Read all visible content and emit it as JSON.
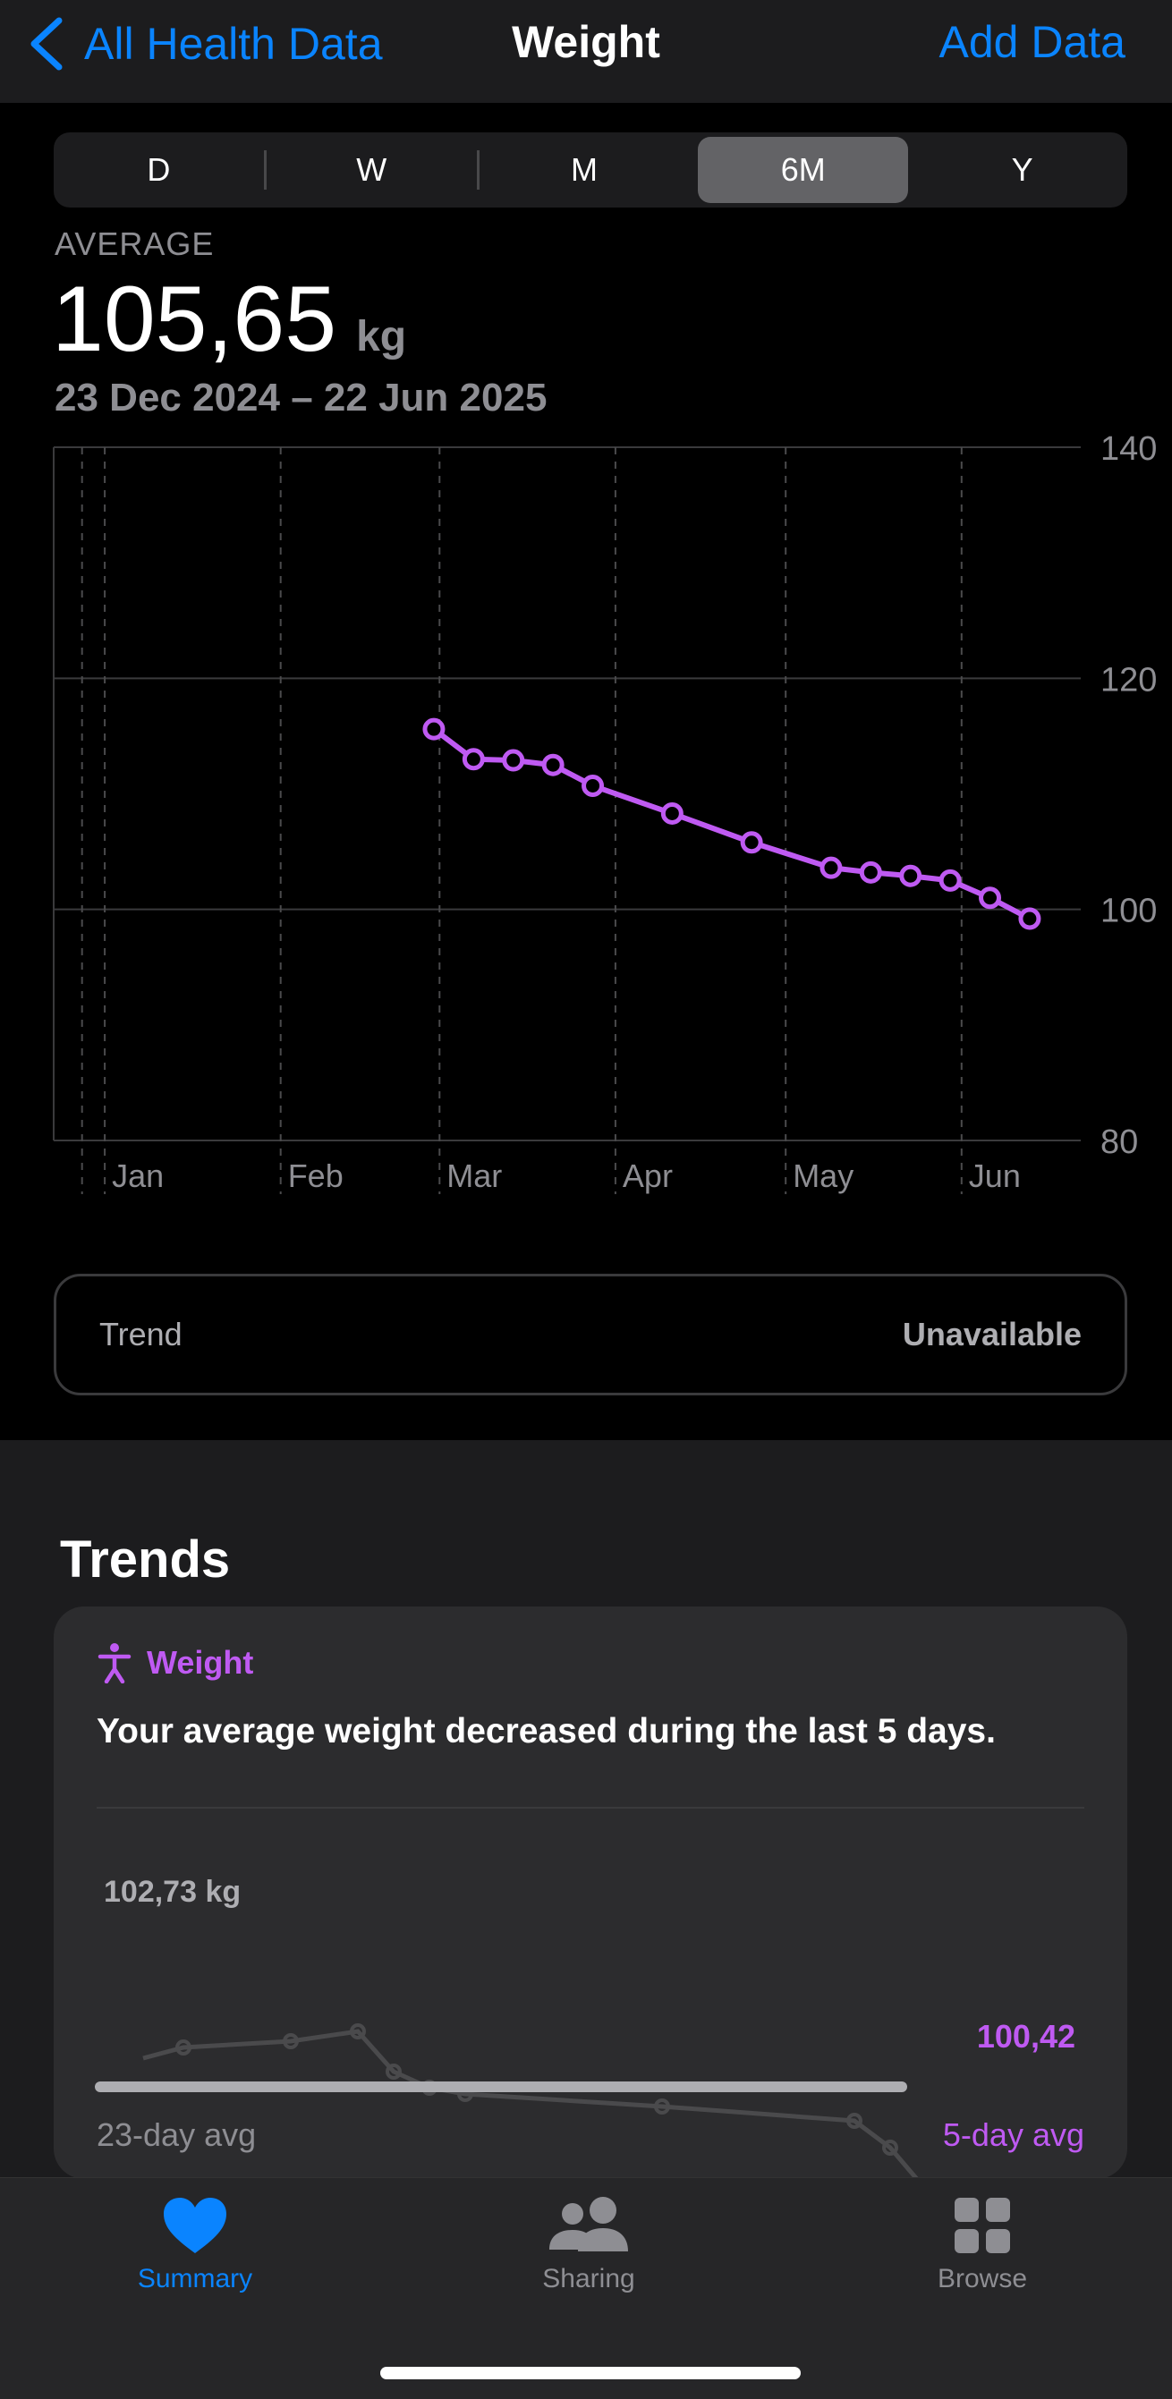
{
  "nav": {
    "back_label": "All Health Data",
    "title": "Weight",
    "add_label": "Add Data"
  },
  "segments": [
    {
      "label": "D",
      "active": false
    },
    {
      "label": "W",
      "active": false
    },
    {
      "label": "M",
      "active": false
    },
    {
      "label": "6M",
      "active": true
    },
    {
      "label": "Y",
      "active": false
    }
  ],
  "summary": {
    "label": "AVERAGE",
    "value": "105,65",
    "unit": "kg",
    "date_range": "23 Dec 2024 – 22 Jun 2025"
  },
  "chart_data": {
    "type": "line",
    "x_start": "2024-12-23",
    "x_end": "2025-06-22",
    "x_tick_labels": [
      "Jan",
      "Feb",
      "Mar",
      "Apr",
      "May",
      "Jun"
    ],
    "ylim": [
      80,
      140
    ],
    "y_ticks": [
      140,
      120,
      100,
      80
    ],
    "grid": true,
    "series": [
      {
        "color": "#bf5af2",
        "points": [
          {
            "date": "2025-02-28",
            "weight": 115.6
          },
          {
            "date": "2025-03-07",
            "weight": 113.0
          },
          {
            "date": "2025-03-14",
            "weight": 112.9
          },
          {
            "date": "2025-03-21",
            "weight": 112.5
          },
          {
            "date": "2025-03-28",
            "weight": 110.7
          },
          {
            "date": "2025-04-11",
            "weight": 108.3
          },
          {
            "date": "2025-04-25",
            "weight": 105.8
          },
          {
            "date": "2025-05-09",
            "weight": 103.6
          },
          {
            "date": "2025-05-16",
            "weight": 103.2
          },
          {
            "date": "2025-05-23",
            "weight": 102.9
          },
          {
            "date": "2025-05-30",
            "weight": 102.5
          },
          {
            "date": "2025-06-06",
            "weight": 101.0
          },
          {
            "date": "2025-06-13",
            "weight": 99.2
          }
        ]
      }
    ]
  },
  "trend_box": {
    "label": "Trend",
    "status": "Unavailable"
  },
  "trends": {
    "heading": "Trends",
    "card": {
      "category": "Weight",
      "text": "Your average weight decreased during the last 5 days.",
      "long_avg_value": "102,73 kg",
      "short_avg_value": "100,42",
      "long_avg_label": "23-day avg",
      "short_avg_label": "5-day avg",
      "long_avg_kg": 102.73,
      "short_avg_kg": 100.42,
      "accent": "#bf5af2"
    }
  },
  "tabbar": {
    "items": [
      {
        "label": "Summary",
        "icon": "heart-icon",
        "active": true
      },
      {
        "label": "Sharing",
        "icon": "people-icon",
        "active": false
      },
      {
        "label": "Browse",
        "icon": "grid-icon",
        "active": false
      }
    ]
  }
}
